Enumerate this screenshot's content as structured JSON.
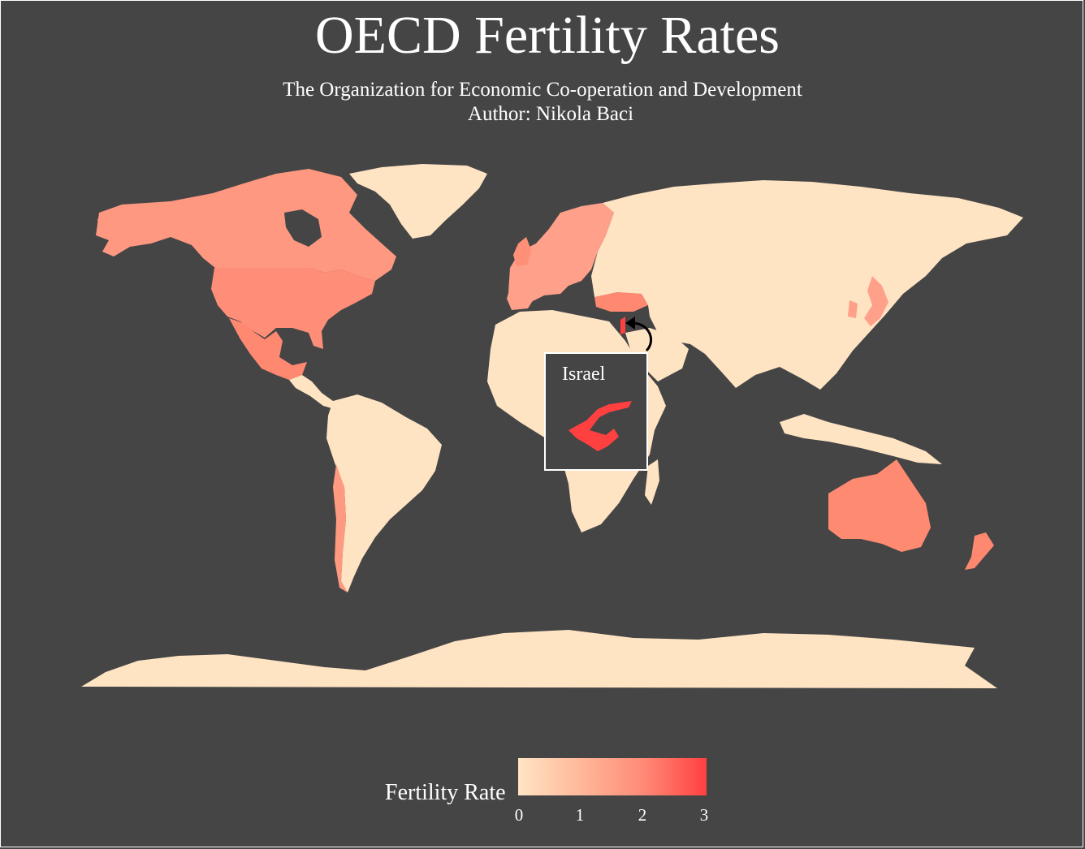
{
  "title": "OECD Fertility Rates",
  "subtitle": "The Organization for Economic Co-operation and Development",
  "author": "Author: Nikola Baci",
  "inset": {
    "label": "Israel"
  },
  "legend": {
    "title": "Fertility Rate",
    "ticks": [
      "0",
      "1",
      "2",
      "3"
    ],
    "min": 0,
    "max": 3,
    "low_color": "#ffe4c4",
    "high_color": "#ff4040"
  },
  "colors": {
    "background": "#454545",
    "non_oecd": "#ffe4c4",
    "israel": "#ff4040"
  },
  "oecd_regions": [
    {
      "name": "North America",
      "color": "#ff9880"
    },
    {
      "name": "Mexico",
      "color": "#ff8870"
    },
    {
      "name": "Europe",
      "color": "#ffa08a"
    },
    {
      "name": "Turkey",
      "color": "#ff8870"
    },
    {
      "name": "Japan/Korea",
      "color": "#ffa08a"
    },
    {
      "name": "Australia",
      "color": "#ff8a72"
    },
    {
      "name": "New Zealand",
      "color": "#ff8870"
    },
    {
      "name": "Chile",
      "color": "#ff9a80"
    }
  ]
}
